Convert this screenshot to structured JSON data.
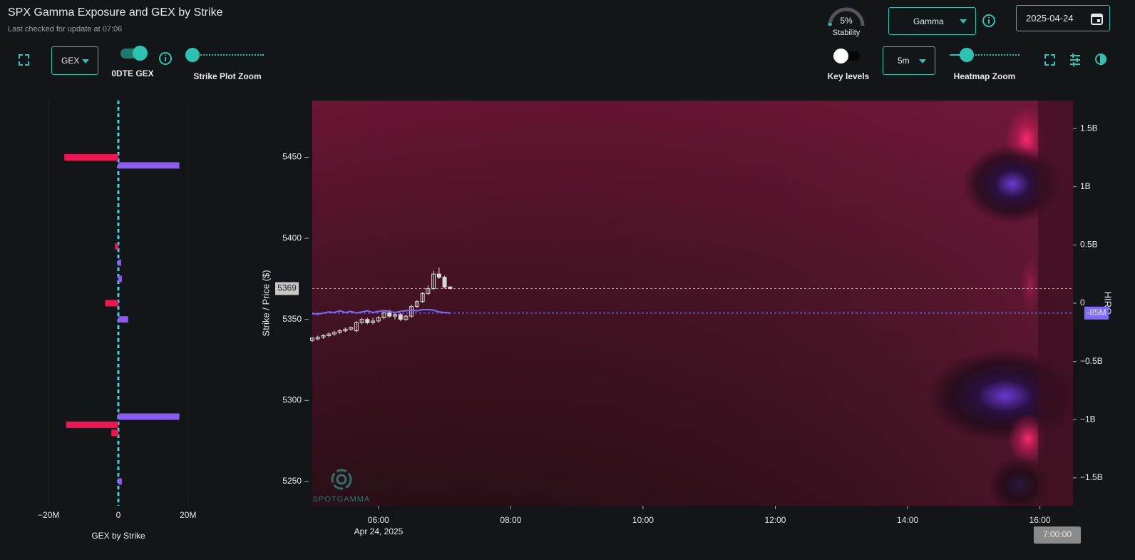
{
  "header": {
    "title": "SPX Gamma Exposure and GEX by Strike",
    "subtitle": "Last checked for update at 07:06"
  },
  "controls": {
    "stability": {
      "value": 5,
      "label": "5%",
      "caption": "Stability"
    },
    "metric_select": "Gamma",
    "date": "2025-04-24",
    "gex_select": "GEX",
    "odte_label": "0DTE GEX",
    "strike_zoom_label": "Strike Plot Zoom",
    "key_levels_label": "Key levels",
    "interval_select": "5m",
    "heatmap_zoom_label": "Heatmap Zoom"
  },
  "strike_chart": {
    "type": "bar",
    "orientation": "horizontal",
    "x_label": "GEX by Strike",
    "strikes": [
      5450,
      5445,
      5395,
      5385,
      5375,
      5360,
      5350,
      5290,
      5285,
      5280,
      5250
    ],
    "values": [
      -15.5,
      17.5,
      -1,
      0.8,
      1,
      -3.8,
      2.8,
      17.5,
      -15,
      -2,
      1
    ],
    "positive_color": "#8a5cf0",
    "negative_color": "#f21553",
    "xlim": [
      -22.5,
      22.5
    ],
    "xticks": [
      {
        "value": -20,
        "label": "−20M"
      },
      0,
      {
        "value": 20,
        "label": "20M"
      }
    ],
    "ylim": [
      5235,
      5485
    ],
    "grid": true
  },
  "heatmap_chart": {
    "type": "candlestick",
    "y_label": "Strike / Price ($)",
    "y2_label": "HIRO",
    "x": [
      300,
      305,
      310,
      315,
      320,
      325,
      330,
      335,
      340,
      345,
      350,
      355,
      360,
      365,
      370,
      375,
      380,
      385,
      390,
      395,
      400,
      405,
      410,
      415,
      420,
      425
    ],
    "open": [
      5337,
      5338,
      5339,
      5340,
      5341,
      5342,
      5343,
      5344,
      5343,
      5348,
      5350,
      5348,
      5349,
      5351,
      5354,
      5352,
      5353,
      5350,
      5352,
      5358,
      5361,
      5366,
      5369,
      5378,
      5376,
      5370
    ],
    "high": [
      5339,
      5340,
      5341,
      5342,
      5343,
      5344,
      5345,
      5345.5,
      5349,
      5351,
      5351,
      5351,
      5352,
      5355,
      5356,
      5354,
      5354,
      5353,
      5359,
      5362,
      5367,
      5371,
      5380,
      5382,
      5377,
      5370.5
    ],
    "low": [
      5336,
      5337,
      5338,
      5339,
      5340,
      5341,
      5342,
      5343,
      5342,
      5347,
      5347,
      5347,
      5348,
      5350,
      5351,
      5350,
      5349,
      5349,
      5351,
      5357,
      5360,
      5365,
      5368,
      5375,
      5369,
      5368.5
    ],
    "close": [
      5338.5,
      5339,
      5340,
      5341,
      5342,
      5343,
      5344,
      5345,
      5348,
      5350,
      5348,
      5349,
      5351,
      5354,
      5352,
      5353,
      5350,
      5352,
      5358,
      5361,
      5366,
      5369,
      5378,
      5376,
      5370,
      5369
    ],
    "candle_color": "#d8d8d8",
    "series": [
      {
        "color": "#7d6bff",
        "axis": "y2",
        "values": [
          -0.09,
          -0.095,
          -0.085,
          -0.075,
          -0.08,
          -0.065,
          -0.08,
          -0.07,
          -0.085,
          -0.075,
          -0.065,
          -0.08,
          -0.07,
          -0.065,
          -0.07,
          -0.08,
          -0.07,
          -0.065,
          -0.06,
          -0.065,
          -0.055,
          -0.055,
          -0.06,
          -0.075,
          -0.08,
          -0.085
        ]
      }
    ],
    "xlim": [
      300,
      990
    ],
    "xticks": [
      {
        "value": 360,
        "label": "06:00"
      },
      {
        "value": 480,
        "label": "08:00"
      },
      {
        "value": 600,
        "label": "10:00"
      },
      {
        "value": 720,
        "label": "12:00"
      },
      {
        "value": 840,
        "label": "14:00"
      },
      {
        "value": 960,
        "label": "16:00"
      }
    ],
    "date_label": "Apr 24, 2025",
    "ylim": [
      5235,
      5485
    ],
    "yticks": [
      5250,
      5300,
      5350,
      5400,
      5450
    ],
    "y2lim": [
      -1.74,
      1.74
    ],
    "y2ticks": [
      {
        "value": 1.5,
        "label": "1.5B"
      },
      {
        "value": 1,
        "label": "1B"
      },
      {
        "value": 0.5,
        "label": "0.5B"
      },
      0,
      {
        "value": -0.5,
        "label": "−0.5B"
      },
      {
        "value": -1,
        "label": "−1B"
      },
      {
        "value": -1.5,
        "label": "−1.5B"
      }
    ],
    "price_level": 5369,
    "hiro_marker": {
      "value": -0.085,
      "label": "-85M"
    },
    "watermark": "SPOTGAMMA",
    "cursor_label": "7:00:00"
  }
}
